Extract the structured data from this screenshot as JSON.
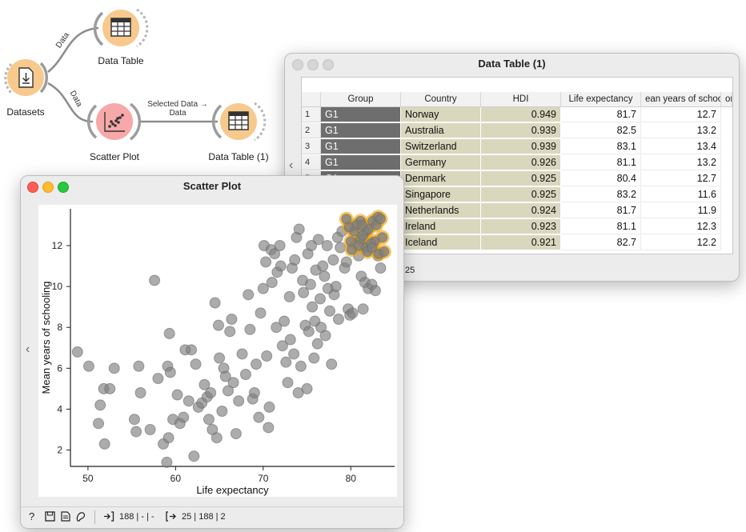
{
  "workflow": {
    "nodes": [
      {
        "id": "datasets",
        "label": "Datasets",
        "icon": "datasets-icon"
      },
      {
        "id": "data-table",
        "label": "Data Table",
        "icon": "table-icon"
      },
      {
        "id": "scatter-plot",
        "label": "Scatter Plot",
        "icon": "scatter-icon"
      },
      {
        "id": "data-table-1",
        "label": "Data Table (1)",
        "icon": "table-icon"
      }
    ],
    "links": {
      "datasets_to_table": "Data",
      "datasets_to_scatter": "Data",
      "scatter_to_table": "Selected Data → Data"
    },
    "colors": {
      "node": "#f7c98d",
      "node_ring": "#f2b25a",
      "scatter_node": "#f7a8a8",
      "link": "#888888"
    }
  },
  "data_table_window": {
    "title": "Data Table (1)",
    "columns": [
      "Group",
      "Country",
      "HDI",
      "Life expectancy",
      "ean years of schoo",
      "or"
    ],
    "rows": [
      {
        "n": "1",
        "group": "G1",
        "country": "Norway",
        "hdi": "0.949",
        "life": "81.7",
        "school": "12.7"
      },
      {
        "n": "2",
        "group": "G1",
        "country": "Australia",
        "hdi": "0.939",
        "life": "82.5",
        "school": "13.2"
      },
      {
        "n": "3",
        "group": "G1",
        "country": "Switzerland",
        "hdi": "0.939",
        "life": "83.1",
        "school": "13.4"
      },
      {
        "n": "4",
        "group": "G1",
        "country": "Germany",
        "hdi": "0.926",
        "life": "81.1",
        "school": "13.2"
      },
      {
        "n": "5",
        "group": "G1",
        "country": "Denmark",
        "hdi": "0.925",
        "life": "80.4",
        "school": "12.7"
      },
      {
        "n": "6",
        "group": "G1",
        "country": "Singapore",
        "hdi": "0.925",
        "life": "83.2",
        "school": "11.6"
      },
      {
        "n": "7",
        "group": "G1",
        "country": "Netherlands",
        "hdi": "0.924",
        "life": "81.7",
        "school": "11.9"
      },
      {
        "n": "8",
        "group": "G1",
        "country": "Ireland",
        "hdi": "0.923",
        "life": "81.1",
        "school": "12.3"
      },
      {
        "n": "9",
        "group": "G1",
        "country": "Iceland",
        "hdi": "0.921",
        "life": "82.7",
        "school": "12.2"
      }
    ],
    "status": "25",
    "colors": {
      "group_cell": "#6e6e6e",
      "highlight_cell": "#d9d7bd"
    }
  },
  "scatter_window": {
    "title": "Scatter Plot",
    "status_left": "188 | - | -",
    "status_right": "25 | 188 | 2",
    "colors": {
      "point": "#808080",
      "selected": "#f0a000"
    }
  },
  "chart_data": {
    "type": "scatter",
    "xlabel": "Life expectancy",
    "ylabel": "Mean years of schooling",
    "xlim": [
      48,
      85
    ],
    "ylim": [
      1.2,
      13.8
    ],
    "xticks": [
      50,
      60,
      70,
      80
    ],
    "yticks": [
      2,
      4,
      6,
      8,
      10,
      12
    ],
    "grid": false,
    "points": [
      [
        48.8,
        6.8
      ],
      [
        50.1,
        6.1
      ],
      [
        51.2,
        3.3
      ],
      [
        51.4,
        4.2
      ],
      [
        51.8,
        5.0
      ],
      [
        51.9,
        2.3
      ],
      [
        52.5,
        5.0
      ],
      [
        53.0,
        6.0
      ],
      [
        55.3,
        3.5
      ],
      [
        55.5,
        2.9
      ],
      [
        55.8,
        6.1
      ],
      [
        56.0,
        4.8
      ],
      [
        57.1,
        3.0
      ],
      [
        57.6,
        10.3
      ],
      [
        58.0,
        5.5
      ],
      [
        58.6,
        2.3
      ],
      [
        59.0,
        1.4
      ],
      [
        59.1,
        6.1
      ],
      [
        59.2,
        2.6
      ],
      [
        59.3,
        7.7
      ],
      [
        59.4,
        5.8
      ],
      [
        59.7,
        3.5
      ],
      [
        60.2,
        4.7
      ],
      [
        60.5,
        3.3
      ],
      [
        60.9,
        3.6
      ],
      [
        61.1,
        6.9
      ],
      [
        61.5,
        4.4
      ],
      [
        61.8,
        6.9
      ],
      [
        62.1,
        1.7
      ],
      [
        62.3,
        6.2
      ],
      [
        62.6,
        4.1
      ],
      [
        63.0,
        4.3
      ],
      [
        63.3,
        5.2
      ],
      [
        63.6,
        4.6
      ],
      [
        63.8,
        3.5
      ],
      [
        64.0,
        4.8
      ],
      [
        64.2,
        3.0
      ],
      [
        64.5,
        9.2
      ],
      [
        64.7,
        2.6
      ],
      [
        64.9,
        8.1
      ],
      [
        65.0,
        6.5
      ],
      [
        65.3,
        3.9
      ],
      [
        65.5,
        6.0
      ],
      [
        65.7,
        5.6
      ],
      [
        66.0,
        4.9
      ],
      [
        66.2,
        7.8
      ],
      [
        66.4,
        8.4
      ],
      [
        66.6,
        5.3
      ],
      [
        66.9,
        2.8
      ],
      [
        67.2,
        4.4
      ],
      [
        67.6,
        6.7
      ],
      [
        68.0,
        5.7
      ],
      [
        68.3,
        9.6
      ],
      [
        68.5,
        7.9
      ],
      [
        68.8,
        4.5
      ],
      [
        69.0,
        4.8
      ],
      [
        69.2,
        6.2
      ],
      [
        69.5,
        3.6
      ],
      [
        69.7,
        8.7
      ],
      [
        70.0,
        9.9
      ],
      [
        70.1,
        12.0
      ],
      [
        70.3,
        11.2
      ],
      [
        70.4,
        6.6
      ],
      [
        70.6,
        3.1
      ],
      [
        70.7,
        4.1
      ],
      [
        70.9,
        11.8
      ],
      [
        71.0,
        10.2
      ],
      [
        71.3,
        11.6
      ],
      [
        71.5,
        8.0
      ],
      [
        71.6,
        10.7
      ],
      [
        71.9,
        12.0
      ],
      [
        72.0,
        11.0
      ],
      [
        72.2,
        7.1
      ],
      [
        72.4,
        8.3
      ],
      [
        72.6,
        6.3
      ],
      [
        72.8,
        5.3
      ],
      [
        73.0,
        9.5
      ],
      [
        73.1,
        7.4
      ],
      [
        73.3,
        10.9
      ],
      [
        73.5,
        6.7
      ],
      [
        73.6,
        11.3
      ],
      [
        73.8,
        12.4
      ],
      [
        74.0,
        4.8
      ],
      [
        74.1,
        12.8
      ],
      [
        74.3,
        6.1
      ],
      [
        74.5,
        10.3
      ],
      [
        74.6,
        9.7
      ],
      [
        74.8,
        8.1
      ],
      [
        75.0,
        5.0
      ],
      [
        75.1,
        11.6
      ],
      [
        75.2,
        7.8
      ],
      [
        75.4,
        10.1
      ],
      [
        75.5,
        12.0
      ],
      [
        75.6,
        9.0
      ],
      [
        75.8,
        6.5
      ],
      [
        75.9,
        8.3
      ],
      [
        76.0,
        10.8
      ],
      [
        76.2,
        7.2
      ],
      [
        76.3,
        12.3
      ],
      [
        76.5,
        9.4
      ],
      [
        76.6,
        8.0
      ],
      [
        76.8,
        11.0
      ],
      [
        77.0,
        10.5
      ],
      [
        77.1,
        7.6
      ],
      [
        77.3,
        12.0
      ],
      [
        77.4,
        9.9
      ],
      [
        77.6,
        8.8
      ],
      [
        77.8,
        6.2
      ],
      [
        78.0,
        11.3
      ],
      [
        78.1,
        9.6
      ],
      [
        78.3,
        10.0
      ],
      [
        78.5,
        12.4
      ],
      [
        78.6,
        8.4
      ],
      [
        78.8,
        11.9
      ],
      [
        79.0,
        12.7
      ],
      [
        79.3,
        10.9
      ],
      [
        79.5,
        11.2
      ],
      [
        79.7,
        8.9
      ],
      [
        79.9,
        8.6
      ],
      [
        80.2,
        8.7
      ],
      [
        80.6,
        12.1
      ],
      [
        80.9,
        11.5
      ],
      [
        81.2,
        10.5
      ],
      [
        81.4,
        8.9
      ],
      [
        81.6,
        10.2
      ],
      [
        82.0,
        9.9
      ],
      [
        82.4,
        10.1
      ],
      [
        82.8,
        9.8
      ],
      [
        83.1,
        11.5
      ],
      [
        83.4,
        10.9
      ]
    ],
    "selected_points": [
      [
        81.7,
        12.7
      ],
      [
        82.5,
        13.2
      ],
      [
        83.1,
        13.4
      ],
      [
        81.1,
        13.2
      ],
      [
        80.4,
        12.7
      ],
      [
        83.2,
        11.6
      ],
      [
        81.7,
        11.9
      ],
      [
        81.1,
        12.3
      ],
      [
        82.7,
        12.2
      ],
      [
        79.5,
        13.3
      ],
      [
        80.0,
        12.2
      ],
      [
        80.6,
        13.0
      ],
      [
        81.4,
        12.5
      ],
      [
        82.0,
        12.8
      ],
      [
        82.9,
        13.0
      ],
      [
        83.6,
        12.4
      ],
      [
        80.1,
        11.8
      ],
      [
        81.9,
        11.7
      ],
      [
        82.3,
        12.1
      ],
      [
        83.4,
        13.3
      ],
      [
        79.8,
        12.9
      ],
      [
        80.9,
        12.0
      ],
      [
        82.4,
        11.9
      ],
      [
        83.8,
        11.7
      ],
      [
        81.3,
        13.0
      ]
    ]
  }
}
